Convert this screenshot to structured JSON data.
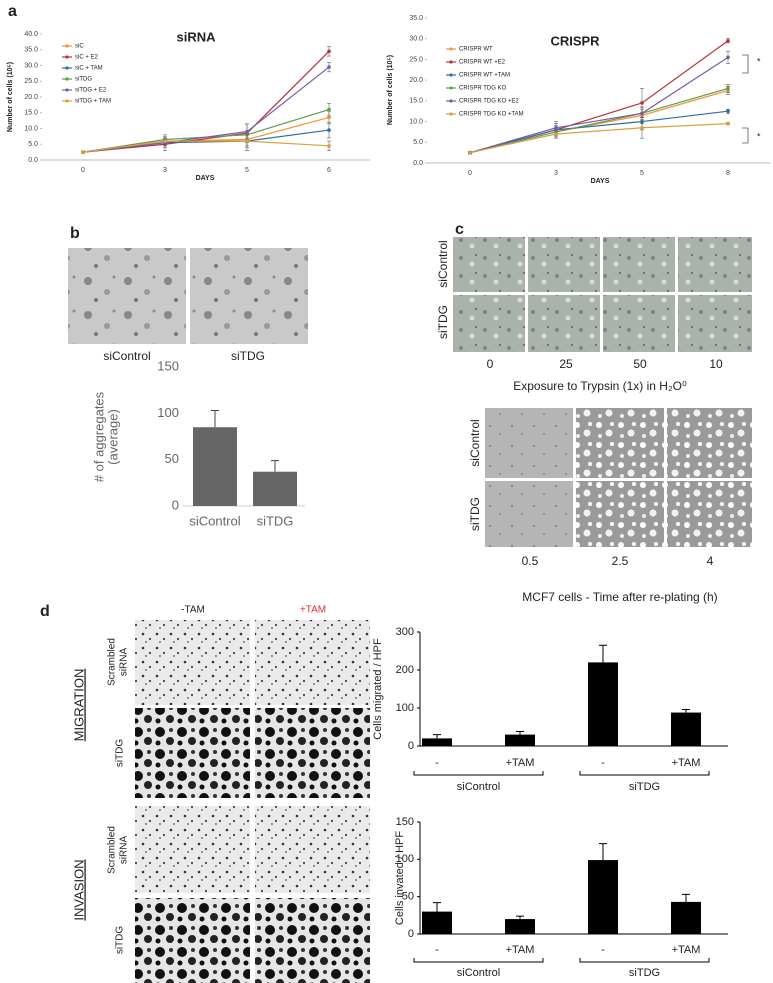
{
  "chart_data": [
    {
      "type": "line",
      "title": "siRNA",
      "xlabel": "DAYS",
      "ylabel": "Number of cells (10⁵)",
      "categories": [
        "0",
        "3",
        "5",
        "6"
      ],
      "ylim": [
        0,
        40
      ],
      "yticks": [
        {
          "value": 0,
          "label": "0.0"
        },
        {
          "value": 5,
          "label": "5.0"
        },
        {
          "value": 10,
          "label": "10.0"
        },
        {
          "value": 15,
          "label": "15.0"
        },
        {
          "value": 20,
          "label": "20.0"
        },
        {
          "value": 25,
          "label": "25.0"
        },
        {
          "value": 30,
          "label": "30.0"
        },
        {
          "value": 35,
          "label": "35.0"
        },
        {
          "value": 40,
          "label": "40.0"
        }
      ],
      "series": [
        {
          "name": "siC",
          "color": "#f0962e",
          "values": [
            2.5,
            6,
            6.5,
            13.5
          ],
          "errors": [
            0.3,
            1,
            2,
            2
          ]
        },
        {
          "name": "siC + E2",
          "color": "#b8323b",
          "values": [
            2.5,
            5,
            8.5,
            34.5
          ],
          "errors": [
            0.3,
            1,
            3,
            1.5
          ]
        },
        {
          "name": "siC + TAM",
          "color": "#2e6da4",
          "values": [
            2.5,
            5.5,
            6,
            9.5
          ],
          "errors": [
            0.3,
            2.5,
            3,
            2.5
          ]
        },
        {
          "name": "siTDG",
          "color": "#5b9e4f",
          "values": [
            2.5,
            6.5,
            8,
            16
          ],
          "errors": [
            0.3,
            1,
            1,
            2
          ]
        },
        {
          "name": "siTDG + E2",
          "color": "#7a5aa8",
          "values": [
            2.5,
            5.5,
            9,
            29.5
          ],
          "errors": [
            0.3,
            1,
            2.5,
            1.5
          ]
        },
        {
          "name": "siTDG + TAM",
          "color": "#d9a040",
          "values": [
            2.5,
            6,
            6,
            4.5
          ],
          "errors": [
            0.3,
            1,
            2,
            1.5
          ]
        }
      ]
    },
    {
      "type": "line",
      "title": "CRISPR",
      "xlabel": "DAYS",
      "ylabel": "Number of cells (10⁵)",
      "categories": [
        "0",
        "3",
        "5",
        "8"
      ],
      "ylim": [
        0,
        35
      ],
      "yticks": [
        {
          "value": 0,
          "label": "0.0"
        },
        {
          "value": 5,
          "label": "5.0"
        },
        {
          "value": 10,
          "label": "10.0"
        },
        {
          "value": 15,
          "label": "15.0"
        },
        {
          "value": 20,
          "label": "20.0"
        },
        {
          "value": 25,
          "label": "25.0"
        },
        {
          "value": 30,
          "label": "30.0"
        },
        {
          "value": 35,
          "label": "35.0"
        }
      ],
      "annotations": [
        "*",
        "*"
      ],
      "series": [
        {
          "name": "CRISPR WT",
          "color": "#f0962e",
          "values": [
            2.5,
            7.5,
            11.5,
            17.5
          ],
          "errors": [
            0.3,
            1,
            2,
            1
          ]
        },
        {
          "name": "CRISPR WT +E2",
          "color": "#b8323b",
          "values": [
            2.5,
            8,
            14.5,
            29.5
          ],
          "errors": [
            0.3,
            1,
            3.5,
            0.5
          ]
        },
        {
          "name": "CRISPR WT +TAM",
          "color": "#2e6da4",
          "values": [
            2.5,
            8,
            10,
            12.5
          ],
          "errors": [
            0.3,
            2,
            2,
            0.5
          ]
        },
        {
          "name": "CRISPR TDG KO",
          "color": "#5b9e4f",
          "values": [
            2.5,
            7.5,
            12,
            18
          ],
          "errors": [
            0.3,
            1,
            1,
            1
          ]
        },
        {
          "name": "CRISPR TDG KO +E2",
          "color": "#7a5aa8",
          "values": [
            2.5,
            8.5,
            12,
            25.5
          ],
          "errors": [
            0.3,
            1,
            1.5,
            1.5
          ]
        },
        {
          "name": "CRISPR TDG KO +TAM",
          "color": "#d9a040",
          "values": [
            2.5,
            7,
            8.5,
            9.5
          ],
          "errors": [
            0.3,
            1,
            2.5,
            0.3
          ]
        }
      ]
    },
    {
      "type": "bar",
      "ylabel": [
        "# of aggregates",
        "(average)"
      ],
      "categories": [
        "siControl",
        "siTDG"
      ],
      "values": [
        85,
        37
      ],
      "errors": [
        18,
        12
      ],
      "color": "#666666",
      "ylim": [
        0,
        150
      ],
      "yticks": [
        0,
        50,
        100,
        150
      ]
    },
    {
      "type": "bar",
      "ylabel": "Cells migrated / HPF",
      "categories": [
        "-",
        "+TAM",
        "-",
        "+TAM"
      ],
      "groups": [
        "siControl",
        "siTDG"
      ],
      "values": [
        20,
        30,
        220,
        88
      ],
      "errors": [
        10,
        8,
        45,
        8
      ],
      "color": "#000000",
      "ylim": [
        0,
        300
      ],
      "yticks": [
        0,
        100,
        200,
        300
      ]
    },
    {
      "type": "bar",
      "ylabel": "Cells invated / HPF",
      "categories": [
        "-",
        "+TAM",
        "-",
        "+TAM"
      ],
      "groups": [
        "siControl",
        "siTDG"
      ],
      "values": [
        30,
        20,
        99,
        43
      ],
      "errors": [
        12,
        4,
        22,
        10
      ],
      "color": "#000000",
      "ylim": [
        0,
        150
      ],
      "yticks": [
        0,
        50,
        100,
        150
      ]
    }
  ],
  "panel_labels": [
    "a",
    "b",
    "c",
    "d"
  ],
  "panel_b": {
    "image_labels": [
      "siControl",
      "siTDG"
    ]
  },
  "panel_c": {
    "trypsin": {
      "row_labels": [
        "siControl",
        "siTDG"
      ],
      "column_labels": [
        "0",
        "25",
        "50",
        "10"
      ],
      "caption": "Exposure to Trypsin (1x) in H₂O⁰"
    },
    "replating": {
      "row_labels": [
        "siControl",
        "siTDG"
      ],
      "column_labels": [
        "0.5",
        "2.5",
        "4"
      ],
      "caption": "MCF7 cells - Time after re-plating (h)"
    }
  },
  "panel_d": {
    "column_labels": [
      "-TAM",
      "+TAM"
    ],
    "row_labels": [
      [
        "Scrambled",
        "siRNA"
      ],
      [
        "siTDG"
      ],
      [
        "Scrambled",
        "siRNA"
      ],
      [
        "siTDG"
      ]
    ],
    "section_labels": [
      "MIGRATION",
      "INVASION"
    ]
  }
}
